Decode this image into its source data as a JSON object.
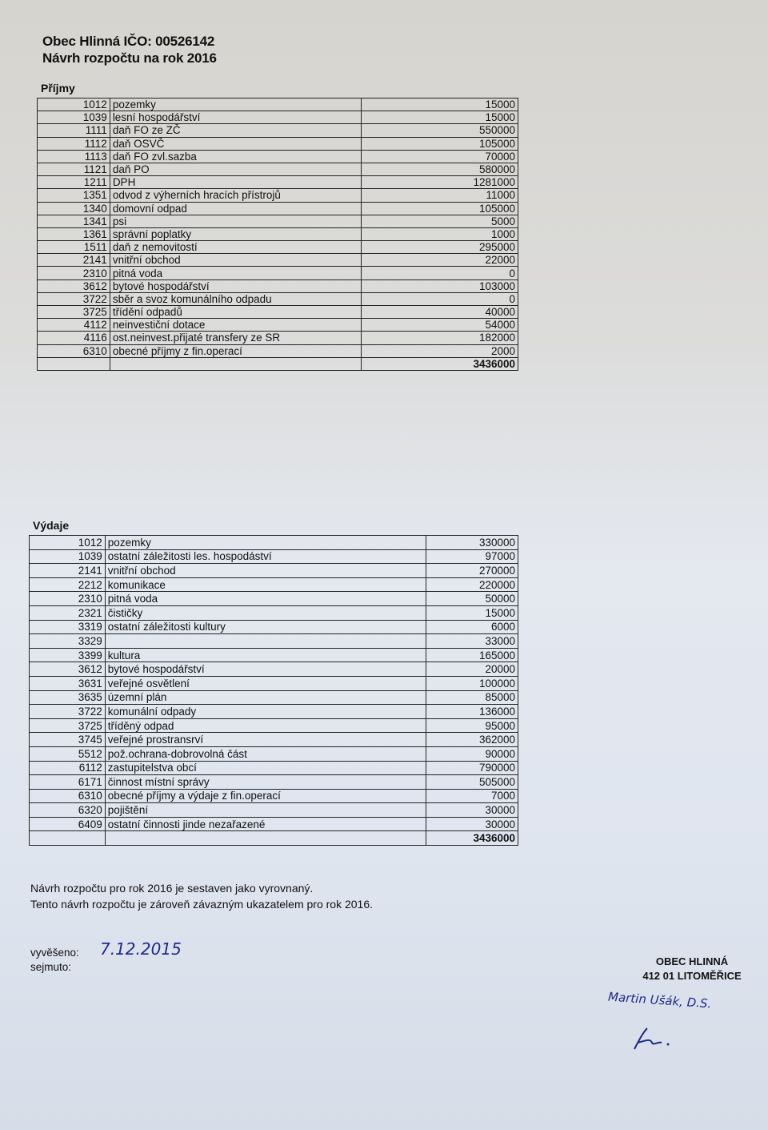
{
  "header": {
    "line1": "Obec Hlinná IČO: 00526142",
    "line2": "Návrh rozpočtu na rok 2016"
  },
  "income": {
    "title": "Příjmy",
    "rows": [
      {
        "code": "1012",
        "name": "pozemky",
        "value": "15000"
      },
      {
        "code": "1039",
        "name": "lesní hospodářství",
        "value": "15000"
      },
      {
        "code": "1111",
        "name": "daň FO ze ZČ",
        "value": "550000"
      },
      {
        "code": "1112",
        "name": "daň OSVČ",
        "value": "105000"
      },
      {
        "code": "1113",
        "name": "daň FO zvl.sazba",
        "value": "70000"
      },
      {
        "code": "1121",
        "name": "daň PO",
        "value": "580000"
      },
      {
        "code": "1211",
        "name": "DPH",
        "value": "1281000"
      },
      {
        "code": "1351",
        "name": "odvod z výherních hracích přístrojů",
        "value": "11000"
      },
      {
        "code": "1340",
        "name": "domovní odpad",
        "value": "105000"
      },
      {
        "code": "1341",
        "name": "psi",
        "value": "5000"
      },
      {
        "code": "1361",
        "name": "správní poplatky",
        "value": "1000"
      },
      {
        "code": "1511",
        "name": "daň z nemovitostí",
        "value": "295000"
      },
      {
        "code": "2141",
        "name": "vnitřní obchod",
        "value": "22000"
      },
      {
        "code": "2310",
        "name": "pitná voda",
        "value": "0"
      },
      {
        "code": "3612",
        "name": "bytové hospodářství",
        "value": "103000"
      },
      {
        "code": "3722",
        "name": "sběr a svoz komunálního odpadu",
        "value": "0"
      },
      {
        "code": "3725",
        "name": "třídění odpadů",
        "value": "40000"
      },
      {
        "code": "4112",
        "name": "neinvestiční dotace",
        "value": "54000"
      },
      {
        "code": "4116",
        "name": "ost.neinvest.přijaté transfery ze SR",
        "value": "182000"
      },
      {
        "code": "6310",
        "name": "obecné příjmy z fin.operací",
        "value": "2000"
      }
    ],
    "total": "3436000"
  },
  "expenses": {
    "title": "Výdaje",
    "rows": [
      {
        "code": "1012",
        "name": "pozemky",
        "value": "330000"
      },
      {
        "code": "1039",
        "name": "ostatní záležitosti les. hospodáství",
        "value": "97000"
      },
      {
        "code": "2141",
        "name": "vnitřní obchod",
        "value": "270000"
      },
      {
        "code": "2212",
        "name": "komunikace",
        "value": "220000"
      },
      {
        "code": "2310",
        "name": "pitná voda",
        "value": "50000"
      },
      {
        "code": "2321",
        "name": "čističky",
        "value": "15000"
      },
      {
        "code": "3319",
        "name": "ostatní záležitosti kultury",
        "value": "6000"
      },
      {
        "code": "3329",
        "name": "",
        "value": "33000"
      },
      {
        "code": "3399",
        "name": "kultura",
        "value": "165000"
      },
      {
        "code": "3612",
        "name": "bytové hospodářství",
        "value": "20000"
      },
      {
        "code": "3631",
        "name": "veřejné osvětlení",
        "value": "100000"
      },
      {
        "code": "3635",
        "name": "územní plán",
        "value": "85000"
      },
      {
        "code": "3722",
        "name": "komunální odpady",
        "value": "136000"
      },
      {
        "code": "3725",
        "name": "tříděný odpad",
        "value": "95000"
      },
      {
        "code": "3745",
        "name": "veřejné prostransrví",
        "value": "362000"
      },
      {
        "code": "5512",
        "name": "pož.ochrana-dobrovolná část",
        "value": "90000"
      },
      {
        "code": "6112",
        "name": "zastupitelstva obcí",
        "value": "790000"
      },
      {
        "code": "6171",
        "name": "činnost místní správy",
        "value": "505000"
      },
      {
        "code": "6310",
        "name": "obecné příjmy a výdaje z fin.operací",
        "value": "7000"
      },
      {
        "code": "6320",
        "name": "pojištění",
        "value": "30000"
      },
      {
        "code": "6409",
        "name": "ostatní činnosti jinde nezařazené",
        "value": "30000"
      }
    ],
    "total": "3436000"
  },
  "notes": {
    "line1": "Návrh rozpočtu pro rok 2016 je sestaven jako vyrovnaný.",
    "line2": "Tento návrh rozpočtu je zároveň závazným ukazatelem pro rok 2016."
  },
  "posting": {
    "posted_label": "vyvěšeno:",
    "posted_date": "7.12.2015",
    "removed_label": "sejmuto:"
  },
  "stamp": {
    "line1": "OBEC HLINNÁ",
    "line2": "412 01 LITOMĚŘICE"
  },
  "signature": {
    "name": "Martin Ušák, D.S."
  },
  "colors": {
    "ink": "#111111",
    "handwriting": "#1d2a8a"
  }
}
